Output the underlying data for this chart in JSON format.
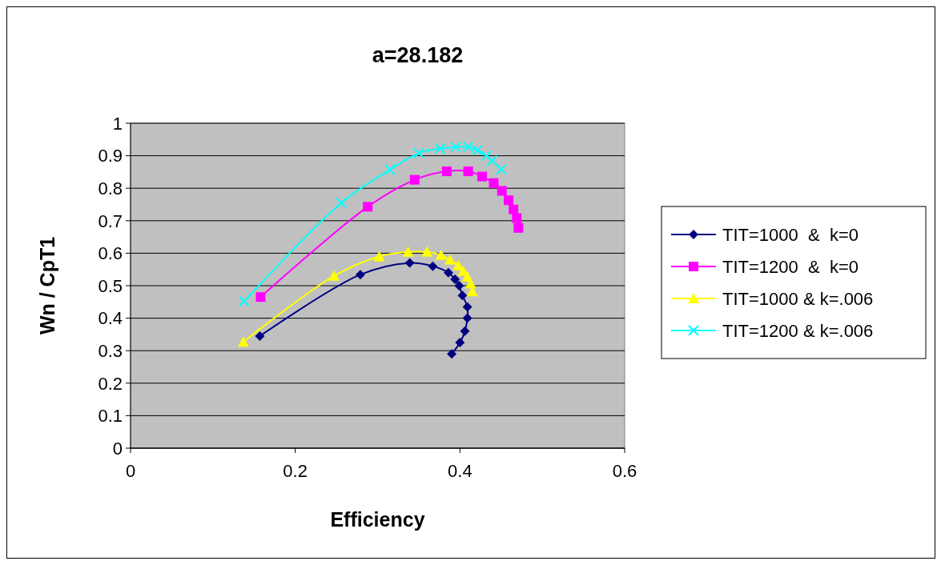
{
  "chart_data": {
    "type": "line",
    "title": "a=28.182",
    "xlabel": "Efficiency",
    "ylabel": "Wn / CpT1",
    "xlim": [
      0,
      0.6
    ],
    "xticks": [
      0,
      0.2,
      0.4,
      0.6
    ],
    "ylim": [
      0,
      1
    ],
    "yticks": [
      0,
      0.1,
      0.2,
      0.3,
      0.4,
      0.5,
      0.6,
      0.7,
      0.8,
      0.9,
      1
    ],
    "grid": "y",
    "legend": "right",
    "line_style": "solid",
    "series": [
      {
        "name": "TIT=1000  &  k=0",
        "color": "#000080",
        "marker": "diamond",
        "x": [
          0.157,
          0.279,
          0.339,
          0.367,
          0.386,
          0.394,
          0.399,
          0.403,
          0.409,
          0.409,
          0.406,
          0.4,
          0.39
        ],
        "values": [
          0.345,
          0.534,
          0.57,
          0.56,
          0.54,
          0.52,
          0.5,
          0.47,
          0.435,
          0.4,
          0.36,
          0.325,
          0.29
        ]
      },
      {
        "name": "TIT=1200  &  k=0",
        "color": "#ff00ff",
        "marker": "square",
        "x": [
          0.158,
          0.288,
          0.345,
          0.384,
          0.41,
          0.427,
          0.441,
          0.451,
          0.459,
          0.465,
          0.469,
          0.471
        ],
        "values": [
          0.465,
          0.743,
          0.826,
          0.852,
          0.852,
          0.836,
          0.816,
          0.792,
          0.763,
          0.735,
          0.708,
          0.678
        ]
      },
      {
        "name": "TIT=1000 & k=.006",
        "color": "#ffff00",
        "marker": "triangle",
        "x": [
          0.137,
          0.247,
          0.302,
          0.337,
          0.36,
          0.377,
          0.388,
          0.398,
          0.404,
          0.409,
          0.413,
          0.415
        ],
        "values": [
          0.327,
          0.53,
          0.59,
          0.604,
          0.604,
          0.594,
          0.58,
          0.562,
          0.545,
          0.527,
          0.506,
          0.482
        ]
      },
      {
        "name": "TIT=1200 & k=.006",
        "color": "#00ffff",
        "marker": "cross",
        "x": [
          0.138,
          0.256,
          0.315,
          0.35,
          0.376,
          0.395,
          0.41,
          0.421,
          0.432,
          0.439,
          0.45
        ],
        "values": [
          0.452,
          0.755,
          0.857,
          0.908,
          0.922,
          0.927,
          0.927,
          0.917,
          0.9,
          0.885,
          0.858
        ]
      }
    ]
  }
}
